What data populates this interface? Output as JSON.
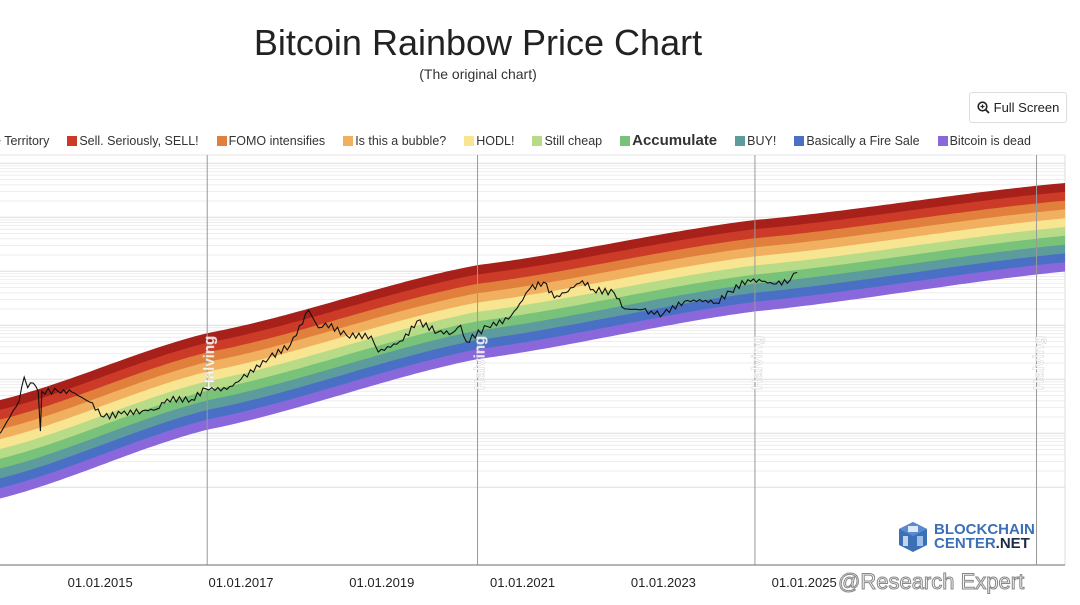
{
  "header": {
    "title": "Bitcoin Rainbow Price Chart",
    "subtitle": "(The original chart)",
    "fullscreen_label": "Full Screen",
    "fullscreen_icon": "zoom-in-icon"
  },
  "watermark": "@Research Expert",
  "logo": {
    "line1": "BLOCKCHAIN",
    "line2": "CENTER",
    "line2b": ".NET"
  },
  "chart_data": {
    "type": "line",
    "title": "Bitcoin Rainbow Price Chart",
    "y_scale": "log",
    "grid": true,
    "legend_position": "top",
    "legend": [
      {
        "label": "e Territory",
        "color": "#a8201a",
        "swatch": false
      },
      {
        "label": "Sell. Seriously, SELL!",
        "color": "#cc3a28"
      },
      {
        "label": "FOMO intensifies",
        "color": "#e0803c"
      },
      {
        "label": "Is this a bubble?",
        "color": "#f0b060"
      },
      {
        "label": "HODL!",
        "color": "#f8e592"
      },
      {
        "label": "Still cheap",
        "color": "#b8db88"
      },
      {
        "label": "Accumulate",
        "color": "#78c27a",
        "bold": true
      },
      {
        "label": "BUY!",
        "color": "#5d9c9c"
      },
      {
        "label": "Basically a Fire Sale",
        "color": "#4a70c6"
      },
      {
        "label": "Bitcoin is dead",
        "color": "#8a68dc"
      }
    ],
    "x_tick_labels": [
      "01.01.2015",
      "01.01.2017",
      "01.01.2019",
      "01.01.2021",
      "01.01.2023",
      "01.01.2025"
    ],
    "x_ticks_year": [
      2015,
      2017,
      2019,
      2021,
      2023,
      2025
    ],
    "halving_label": "Halving",
    "halvings": [
      2016.52,
      2020.36,
      2024.3,
      2028.3
    ],
    "price_series": {
      "x": [
        2013.58,
        2013.85,
        2013.92,
        2013.97,
        2014.05,
        2014.12,
        2014.15,
        2014.17,
        2014.4,
        2014.6,
        2014.85,
        2015.05,
        2015.3,
        2015.6,
        2015.8,
        2015.95,
        2016.3,
        2016.5,
        2016.8,
        2017.0,
        2017.4,
        2017.7,
        2017.96,
        2018.1,
        2018.2,
        2018.5,
        2018.85,
        2018.95,
        2019.3,
        2019.5,
        2019.8,
        2020.0,
        2020.12,
        2020.2,
        2020.5,
        2020.8,
        2021.0,
        2021.1,
        2021.3,
        2021.45,
        2021.6,
        2021.85,
        2022.0,
        2022.3,
        2022.45,
        2022.7,
        2022.87,
        2023.0,
        2023.3,
        2023.6,
        2023.75,
        2023.95,
        2024.2,
        2024.4,
        2024.6,
        2024.8,
        2024.9
      ],
      "y": [
        100,
        400,
        1100,
        700,
        850,
        600,
        110,
        600,
        600,
        580,
        380,
        200,
        230,
        260,
        280,
        430,
        420,
        670,
        650,
        1000,
        2500,
        4300,
        19000,
        9000,
        11000,
        6500,
        6300,
        3200,
        5200,
        12000,
        7500,
        7200,
        10000,
        5000,
        9500,
        13000,
        29000,
        47000,
        63000,
        32000,
        40000,
        67000,
        46000,
        40000,
        20000,
        19500,
        16000,
        16500,
        28000,
        29000,
        26000,
        42000,
        70000,
        65000,
        58000,
        68000,
        95000
      ]
    }
  }
}
